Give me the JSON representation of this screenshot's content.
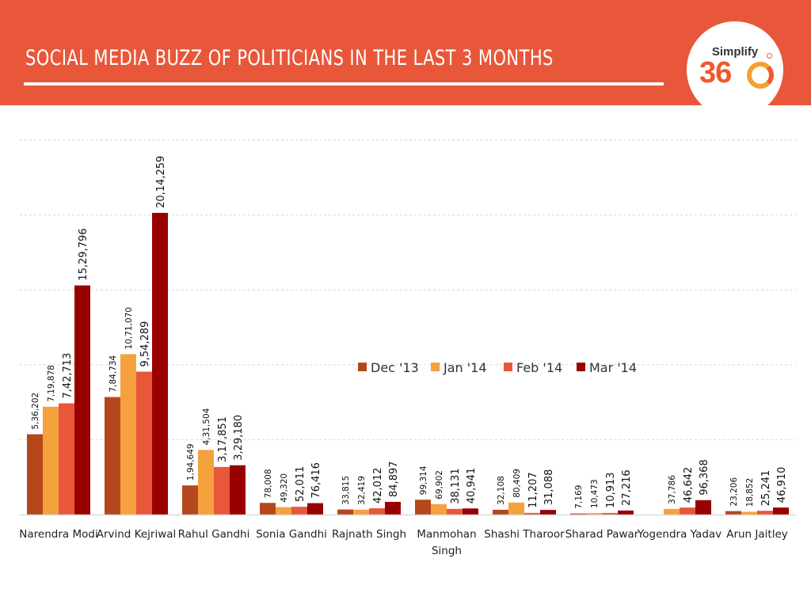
{
  "header": {
    "title": "SOCIAL MEDIA BUZZ  OF POLITICIANS IN THE LAST 3 MONTHS",
    "logo_top": "Simplify",
    "logo_number": "36"
  },
  "colors": {
    "header_bg": "#e8573a",
    "dec13": "#b5471d",
    "jan14": "#f5a13e",
    "feb14": "#e8573a",
    "mar14": "#990000"
  },
  "chart_data": {
    "type": "bar",
    "title": "",
    "xlabel": "",
    "ylabel": "",
    "ylim": [
      0,
      2500000
    ],
    "grid": true,
    "legend_position": "center-right",
    "categories": [
      "Narendra Modi",
      "Arvind Kejriwal",
      "Rahul Gandhi",
      "Sonia Gandhi",
      "Rajnath Singh",
      "Manmohan Singh",
      "Shashi Tharoor",
      "Sharad Pawar",
      "Yogendra Yadav",
      "Arun Jaitley"
    ],
    "category_lines": [
      [
        "Narendra Modi"
      ],
      [
        "Arvind Kejriwal"
      ],
      [
        "Rahul Gandhi"
      ],
      [
        "Sonia Gandhi"
      ],
      [
        "Rajnath Singh"
      ],
      [
        "Manmohan",
        "Singh"
      ],
      [
        "Shashi Tharoor"
      ],
      [
        "Sharad Pawar"
      ],
      [
        "Yogendra Yadav"
      ],
      [
        "Arun Jaitley"
      ]
    ],
    "series": [
      {
        "name": "Dec '13",
        "values": [
          536202,
          784734,
          194649,
          78008,
          33815,
          99314,
          32108,
          7169,
          null,
          23206
        ],
        "labels": [
          "5,36,202",
          "7,84,734",
          "1,94,649",
          "78,008",
          "33,815",
          "99,314",
          "32,108",
          "7,169",
          "",
          "23,206"
        ]
      },
      {
        "name": "Jan '14",
        "values": [
          719878,
          1071070,
          431504,
          49320,
          32419,
          69902,
          80409,
          10473,
          37786,
          18852
        ],
        "labels": [
          "7,19,878",
          "10,71,070",
          "4,31,504",
          "49,320",
          "32,419",
          "69,902",
          "80,409",
          "10,473",
          "37,786",
          "18,852"
        ]
      },
      {
        "name": "Feb '14",
        "values": [
          742713,
          954289,
          317851,
          52011,
          42012,
          38131,
          11207,
          10913,
          46642,
          25241
        ],
        "labels": [
          "7,42,713",
          "9,54,289",
          "3,17,851",
          "52,011",
          "42,012",
          "38,131",
          "11,207",
          "10,913",
          "46,642",
          "25,241"
        ]
      },
      {
        "name": "Mar '14",
        "values": [
          1529796,
          2014259,
          329180,
          76416,
          84897,
          40941,
          31088,
          27216,
          96368,
          46910
        ],
        "labels": [
          "15,29,796",
          "20,14,259",
          "3,29,180",
          "76,416",
          "84,897",
          "40,941",
          "31,088",
          "27,216",
          "96,368",
          "46,910"
        ]
      }
    ]
  }
}
